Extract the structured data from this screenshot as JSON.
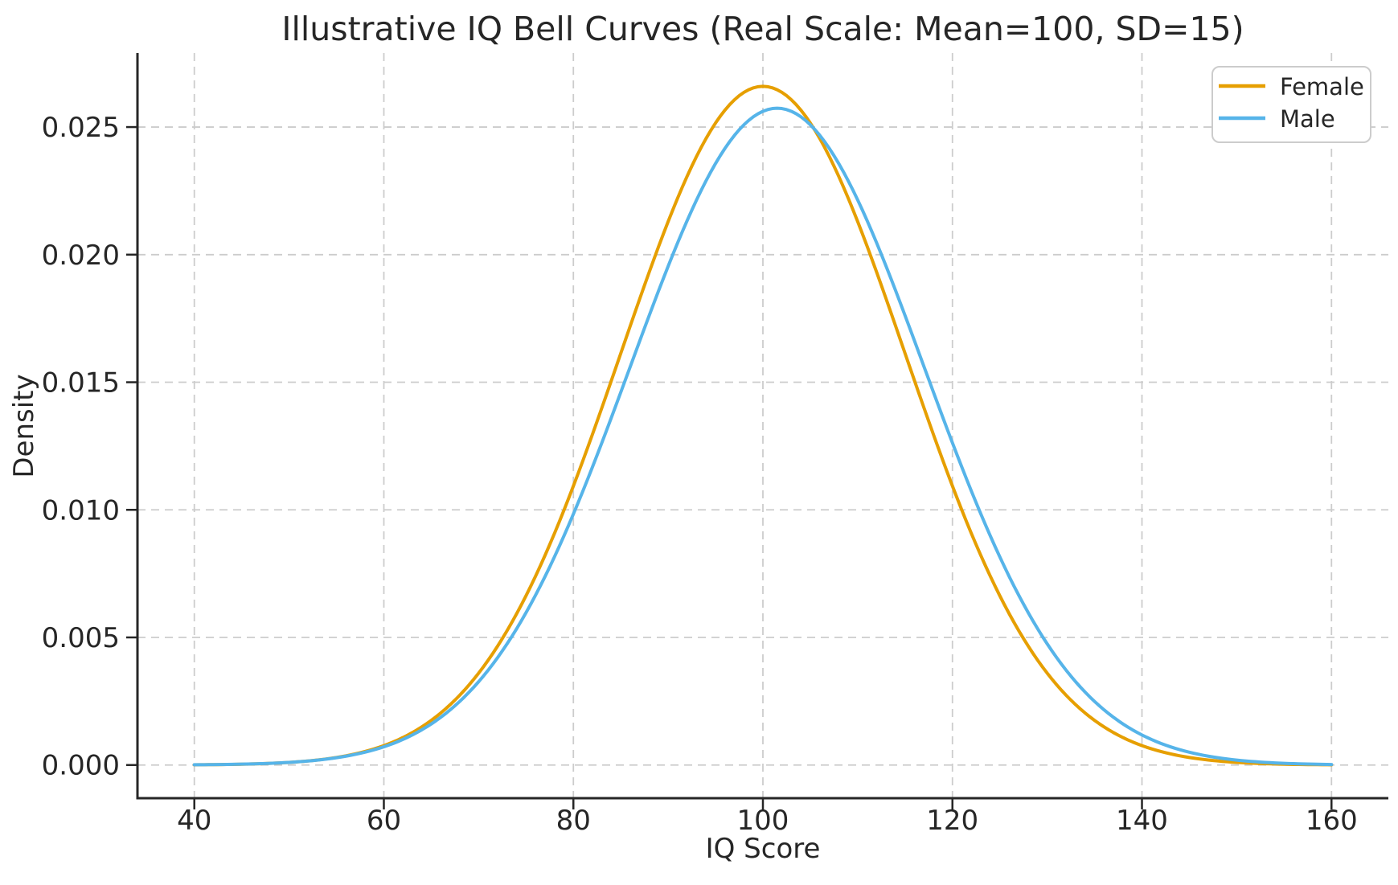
{
  "chart_data": {
    "type": "line",
    "title": "Illustrative IQ Bell Curves (Real Scale: Mean=100, SD=15)",
    "xlabel": "IQ Score",
    "ylabel": "Density",
    "xlim": [
      34,
      166
    ],
    "ylim": [
      -0.0013,
      0.0279
    ],
    "x_range_plotted": [
      40,
      160
    ],
    "xticks": [
      40,
      60,
      80,
      100,
      120,
      140,
      160
    ],
    "xtick_labels": [
      "40",
      "60",
      "80",
      "100",
      "120",
      "140",
      "160"
    ],
    "yticks": [
      0.0,
      0.005,
      0.01,
      0.015,
      0.02,
      0.025
    ],
    "ytick_labels": [
      "0.000",
      "0.005",
      "0.010",
      "0.015",
      "0.020",
      "0.025"
    ],
    "grid": true,
    "grid_style": "dashed",
    "grid_color": "#cccccc",
    "axis_color": "#262626",
    "legend_position": "upper right",
    "series": [
      {
        "name": "Female",
        "color": "#E69F00",
        "distribution": "normal",
        "mean": 100,
        "sd": 15,
        "peak_density": 0.026596,
        "sample_x": [
          40,
          45,
          50,
          55,
          60,
          65,
          70,
          75,
          80,
          85,
          90,
          95,
          100,
          105,
          110,
          115,
          120,
          125,
          130,
          135,
          140,
          145,
          150,
          155,
          160
        ],
        "sample_density": [
          9e-06,
          3.2e-05,
          0.000103,
          0.000295,
          0.00076,
          0.00175,
          0.003599,
          0.006632,
          0.010934,
          0.016131,
          0.021297,
          0.025158,
          0.026596,
          0.025158,
          0.021297,
          0.016131,
          0.010934,
          0.006632,
          0.003599,
          0.00175,
          0.00076,
          0.000295,
          0.000103,
          3.2e-05,
          9e-06
        ]
      },
      {
        "name": "Male",
        "color": "#56B4E9",
        "distribution": "normal",
        "mean": 101.5,
        "sd": 15.5,
        "peak_density": 0.02574,
        "sample_x": [
          40,
          45,
          50,
          55,
          60,
          65,
          70,
          75,
          80,
          85,
          90,
          95,
          100,
          105,
          110,
          115,
          120,
          125,
          130,
          135,
          140,
          145,
          150,
          155,
          160
        ],
        "sample_density": [
          1e-05,
          3.3e-05,
          0.000103,
          0.000286,
          0.000715,
          0.001609,
          0.003264,
          0.005968,
          0.009834,
          0.014604,
          0.019545,
          0.023571,
          0.025618,
          0.02509,
          0.022146,
          0.017614,
          0.012625,
          0.008156,
          0.004749,
          0.002491,
          0.001177,
          0.000502,
          0.000193,
          6.7e-05,
          2.1e-05
        ]
      }
    ]
  }
}
